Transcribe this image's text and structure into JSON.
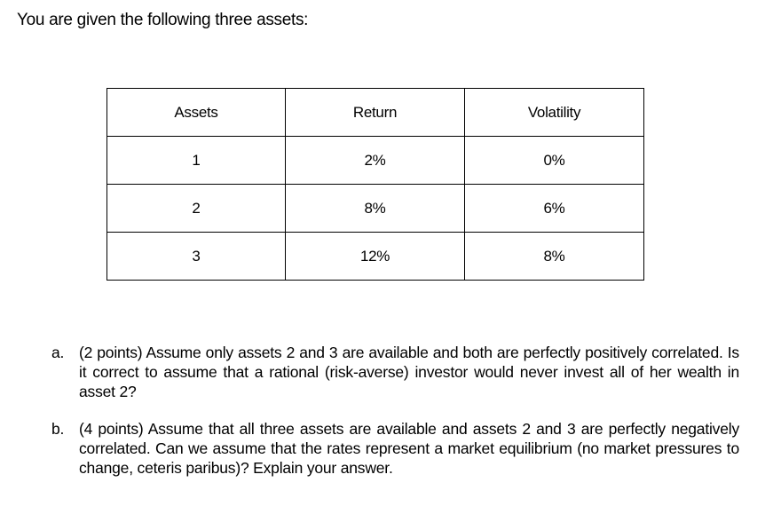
{
  "intro": "You are given the following three assets:",
  "table": {
    "headers": [
      "Assets",
      "Return",
      "Volatility"
    ],
    "rows": [
      [
        "1",
        "2%",
        "0%"
      ],
      [
        "2",
        "8%",
        "6%"
      ],
      [
        "3",
        "12%",
        "8%"
      ]
    ]
  },
  "questions": [
    {
      "marker": "a.",
      "text": "(2 points) Assume only assets 2 and 3 are available and both are perfectly positively correlated. Is it correct to assume that a rational (risk-averse) investor would never invest all of her wealth in asset 2?"
    },
    {
      "marker": "b.",
      "text": "(4 points) Assume that all three assets are available and assets 2 and 3 are perfectly negatively correlated. Can we assume that the rates represent a market equilibrium (no market pressures to change, ceteris paribus)? Explain your answer."
    }
  ]
}
